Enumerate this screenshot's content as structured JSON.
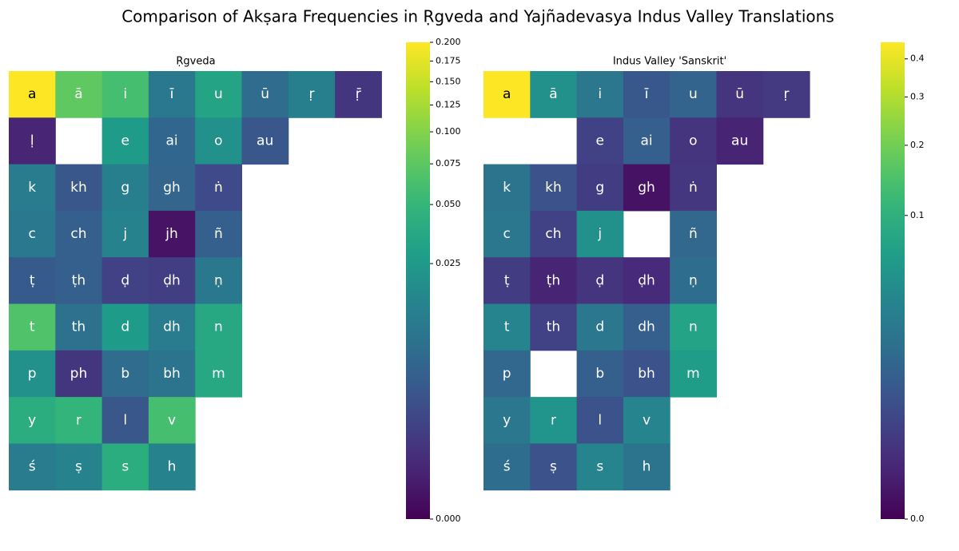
{
  "title": "Comparison of Akṣara Frequencies in Ṛgveda and Yajñadevasya Indus Valley Translations",
  "chart_data": [
    {
      "type": "heatmap",
      "title": "Ṛgveda",
      "colormap": "viridis",
      "norm": "power",
      "gamma": 0.3,
      "vlim": [
        0,
        0.2
      ],
      "cticks": [
        {
          "value": 0,
          "label": "0.000"
        },
        {
          "value": 0.025,
          "label": "0.025"
        },
        {
          "value": 0.05,
          "label": "0.050"
        },
        {
          "value": 0.075,
          "label": "0.075"
        },
        {
          "value": 0.1,
          "label": "0.100"
        },
        {
          "value": 0.125,
          "label": "0.125"
        },
        {
          "value": 0.15,
          "label": "0.150"
        },
        {
          "value": 0.175,
          "label": "0.175"
        },
        {
          "value": 0.2,
          "label": "0.200"
        }
      ],
      "cells": [
        [
          "a",
          "ā",
          "i",
          "ī",
          "u",
          "ū",
          "ṛ",
          "ṝ"
        ],
        [
          "ḷ",
          null,
          "e",
          "ai",
          "o",
          "au"
        ],
        [
          "k",
          "kh",
          "g",
          "gh",
          "ṅ"
        ],
        [
          "c",
          "ch",
          "j",
          "jh",
          "ñ"
        ],
        [
          "ṭ",
          "ṭh",
          "ḍ",
          "ḍh",
          "ṇ"
        ],
        [
          "t",
          "th",
          "d",
          "dh",
          "n"
        ],
        [
          "p",
          "ph",
          "b",
          "bh",
          "m"
        ],
        [
          "y",
          "r",
          "l",
          "v"
        ],
        [
          "ś",
          "ṣ",
          "s",
          "h"
        ]
      ],
      "values": [
        [
          0.2,
          0.077,
          0.061,
          0.0095,
          0.033,
          0.006,
          0.012,
          0.0004
        ],
        [
          0.0001,
          null,
          0.027,
          0.005,
          0.02,
          0.0025
        ],
        [
          0.011,
          0.0025,
          0.012,
          0.0045,
          0.0013
        ],
        [
          0.0095,
          0.0037,
          0.014,
          1e-05,
          0.0037
        ],
        [
          0.0029,
          0.0037,
          0.0009,
          0.0007,
          0.0095
        ],
        [
          0.067,
          0.0073,
          0.027,
          0.011,
          0.036
        ],
        [
          0.02,
          0.0004,
          0.006,
          0.008,
          0.036
        ],
        [
          0.041,
          0.048,
          0.0025,
          0.061
        ],
        [
          0.011,
          0.014,
          0.041,
          0.014
        ]
      ]
    },
    {
      "type": "heatmap",
      "title": "Indus Valley 'Sanskrit'",
      "colormap": "viridis",
      "norm": "power",
      "gamma": 0.3,
      "vlim": [
        0,
        0.45
      ],
      "cticks": [
        {
          "value": 0,
          "label": "0.0"
        },
        0.1,
        0.2,
        0.3,
        0.4
      ],
      "cells": [
        [
          "a",
          "ā",
          "i",
          "ī",
          "u",
          "ū",
          "ṛ"
        ],
        [
          null,
          null,
          "e",
          "ai",
          "o",
          "au"
        ],
        [
          "k",
          "kh",
          "g",
          "gh",
          "ṅ"
        ],
        [
          "c",
          "ch",
          "j",
          null,
          "ñ"
        ],
        [
          "ṭ",
          "ṭh",
          "ḍ",
          "ḍh",
          "ṇ"
        ],
        [
          "t",
          "th",
          "d",
          "dh",
          "n"
        ],
        [
          "p",
          null,
          "b",
          "bh",
          "m"
        ],
        [
          "y",
          "r",
          "l",
          "v"
        ],
        [
          "ś",
          "ṣ",
          "s",
          "h"
        ]
      ],
      "values": [
        [
          0.45,
          0.045,
          0.021,
          0.006,
          0.01,
          0.0008,
          0.0012
        ],
        [
          null,
          null,
          0.002,
          0.008,
          0.0008,
          0.0002
        ],
        [
          0.018,
          0.0045,
          0.0015,
          2e-05,
          0.001
        ],
        [
          0.021,
          0.002,
          0.045,
          null,
          0.011
        ],
        [
          0.0015,
          0.0002,
          0.0008,
          0.0004,
          0.014
        ],
        [
          0.032,
          0.002,
          0.021,
          0.008,
          0.073
        ],
        [
          0.011,
          null,
          0.008,
          0.0045,
          0.062
        ],
        [
          0.021,
          0.051,
          0.0045,
          0.032
        ],
        [
          0.014,
          0.0045,
          0.032,
          0.018
        ]
      ]
    }
  ]
}
